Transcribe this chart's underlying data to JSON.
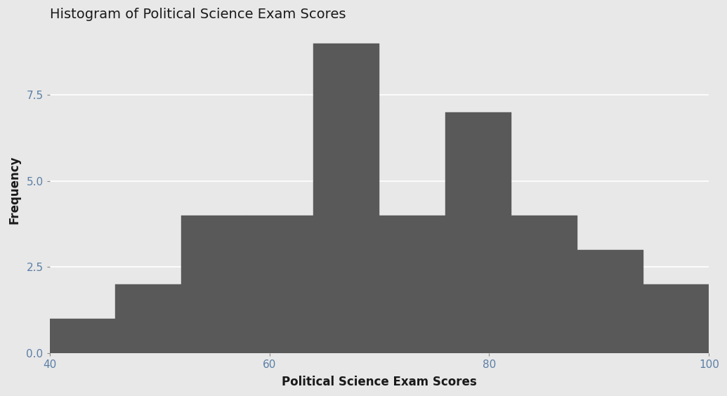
{
  "title": "Histogram of Political Science Exam Scores",
  "xlabel": "Political Science Exam Scores",
  "ylabel": "Frequency",
  "bar_color": "#595959",
  "bar_edgecolor": "#595959",
  "panel_background": "#e8e8e8",
  "fig_background": "#e8e8e8",
  "grid_color": "#ffffff",
  "bin_edges": [
    40,
    46,
    52,
    58,
    64,
    70,
    76,
    82,
    88,
    94,
    100
  ],
  "frequencies": [
    1,
    2,
    4,
    4,
    9,
    4,
    7,
    4,
    3,
    2
  ],
  "xlim": [
    40,
    100
  ],
  "ylim": [
    0.0,
    9.5
  ],
  "xticks": [
    40,
    60,
    80,
    100
  ],
  "yticks": [
    0.0,
    2.5,
    5.0,
    7.5
  ],
  "title_fontsize": 14,
  "label_fontsize": 12,
  "tick_fontsize": 11,
  "tick_label_color": "#5b7fa6",
  "axis_label_color": "#1a1a1a",
  "title_color": "#1a1a1a"
}
